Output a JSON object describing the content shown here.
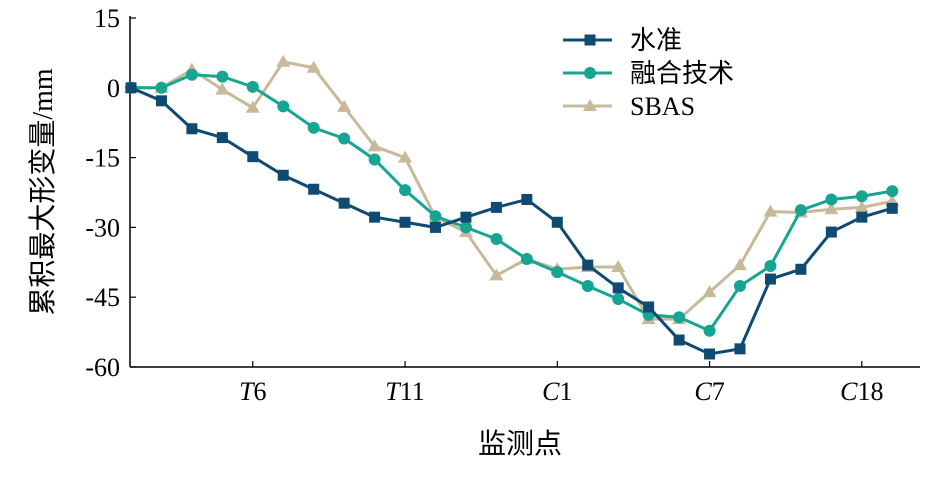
{
  "chart_data": {
    "type": "line",
    "title": "",
    "xlabel": "监测点",
    "ylabel": "累积最大形变量/mm",
    "ylim": [
      -60,
      15
    ],
    "yticks": [
      15,
      0,
      -15,
      -30,
      -45,
      -60
    ],
    "xtick_labels": [
      {
        "index": 4,
        "prefix": "T",
        "num": "6"
      },
      {
        "index": 9,
        "prefix": "T",
        "num": "11"
      },
      {
        "index": 14,
        "prefix": "C",
        "num": "1"
      },
      {
        "index": 19,
        "prefix": "C",
        "num": "7"
      },
      {
        "index": 24,
        "prefix": "C",
        "num": "18"
      }
    ],
    "point_count": 26,
    "legend_position": "top-right",
    "grid": false,
    "series": [
      {
        "name": "水准",
        "color": "#0f4a72",
        "marker": "square",
        "values": [
          0,
          -2.8,
          -8.8,
          -10.7,
          -14.8,
          -18.8,
          -21.8,
          -24.8,
          -27.8,
          -28.9,
          -30,
          -27.8,
          -25.7,
          -24,
          -28.9,
          -38.1,
          -43,
          -47.1,
          -54.2,
          -57.2,
          -56.1,
          -41.1,
          -39,
          -31,
          -27.8,
          -25.9
        ]
      },
      {
        "name": "融合技术",
        "color": "#17a593",
        "marker": "circle",
        "values": [
          0,
          0,
          2.8,
          2.4,
          0.2,
          -4,
          -8.6,
          -10.9,
          -15.4,
          -22,
          -27.6,
          -30,
          -32.5,
          -36.8,
          -39.6,
          -42.6,
          -45.4,
          -48.8,
          -49.3,
          -52.2,
          -42.6,
          -38.3,
          -26.3,
          -24,
          -23.3,
          -22.2
        ]
      },
      {
        "name": "SBAS",
        "color": "#c9b99b",
        "marker": "triangle",
        "values": [
          0,
          0,
          3.9,
          -0.4,
          -4.3,
          5.6,
          4.3,
          -4.1,
          -12.6,
          -15,
          -27.8,
          -31,
          -40.3,
          -36.8,
          -39,
          -38.5,
          -38.5,
          -49.7,
          -49.7,
          -43.9,
          -38.1,
          -26.6,
          -26.8,
          -26.1,
          -25.7,
          -24.4
        ]
      }
    ]
  }
}
